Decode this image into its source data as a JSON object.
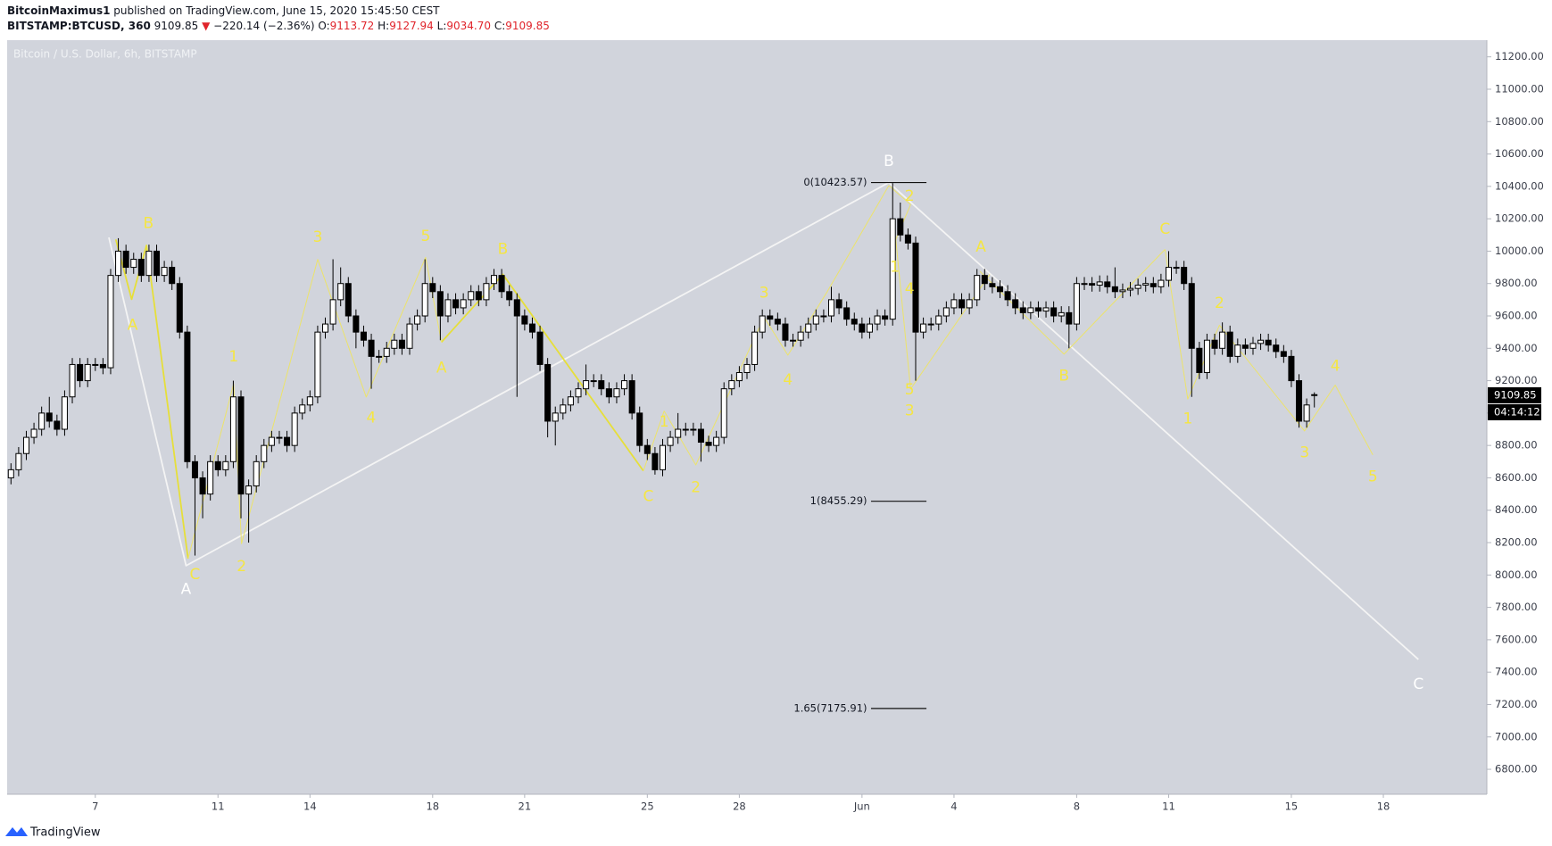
{
  "header": {
    "author": "BitcoinMaximus1",
    "published": "published on TradingView.com, June 15, 2020 15:45:50 CEST",
    "symbol": "BITSTAMP:BTCUSD, 360",
    "last": "9109.85",
    "arrow": "▼",
    "change": "−220.14 (−2.36%)",
    "ohlc": [
      {
        "label": "O:",
        "value": "9113.72"
      },
      {
        "label": "H:",
        "value": "9127.94"
      },
      {
        "label": "L:",
        "value": "9034.70"
      },
      {
        "label": "C:",
        "value": "9109.85"
      }
    ]
  },
  "footer": {
    "brand": "TradingView"
  },
  "chart_data": {
    "type": "candlestick",
    "title": "Bitcoin / U.S. Dollar, 6h, BITSTAMP",
    "up_color": "#ffffff",
    "down_color": "#000000",
    "background": "#d1d4dc",
    "ylim": [
      6646,
      11303
    ],
    "yticks": [
      {
        "value": 6800,
        "label": "6800.00"
      },
      {
        "value": 7000,
        "label": "7000.00"
      },
      {
        "value": 7200,
        "label": "7200.00"
      },
      {
        "value": 7400,
        "label": "7400.00"
      },
      {
        "value": 7600,
        "label": "7600.00"
      },
      {
        "value": 7800,
        "label": "7800.00"
      },
      {
        "value": 8000,
        "label": "8000.00"
      },
      {
        "value": 8200,
        "label": "8200.00"
      },
      {
        "value": 8400,
        "label": "8400.00"
      },
      {
        "value": 8600,
        "label": "8600.00"
      },
      {
        "value": 8800,
        "label": "8800.00"
      },
      {
        "value": 9000,
        "label": "9000.00"
      },
      {
        "value": 9200,
        "label": "9200.00"
      },
      {
        "value": 9400,
        "label": "9400.00"
      },
      {
        "value": 9600,
        "label": "9600.00"
      },
      {
        "value": 9800,
        "label": "9800.00"
      },
      {
        "value": 10000,
        "label": "10000.00"
      },
      {
        "value": 10200,
        "label": "10200.00"
      },
      {
        "value": 10400,
        "label": "10400.00"
      },
      {
        "value": 10600,
        "label": "10600.00"
      },
      {
        "value": 10800,
        "label": "10800.00"
      },
      {
        "value": 11000,
        "label": "11000.00"
      },
      {
        "value": 11200,
        "label": "11200.00"
      }
    ],
    "categories": [
      null,
      null,
      null,
      null,
      null,
      null,
      null,
      null,
      null,
      null,
      null,
      "7",
      null,
      null,
      null,
      null,
      null,
      null,
      null,
      null,
      null,
      null,
      null,
      null,
      null,
      null,
      null,
      "11",
      null,
      null,
      null,
      null,
      null,
      null,
      null,
      null,
      null,
      null,
      null,
      "14",
      null,
      null,
      null,
      null,
      null,
      null,
      null,
      null,
      null,
      null,
      null,
      null,
      null,
      null,
      null,
      "18",
      null,
      null,
      null,
      null,
      null,
      null,
      null,
      null,
      null,
      null,
      null,
      "21",
      null,
      null,
      null,
      null,
      null,
      null,
      null,
      null,
      null,
      null,
      null,
      null,
      null,
      null,
      null,
      "25",
      null,
      null,
      null,
      null,
      null,
      null,
      null,
      null,
      null,
      null,
      null,
      "28",
      null,
      null,
      null,
      null,
      null,
      null,
      null,
      null,
      null,
      null,
      null,
      null,
      null,
      null,
      null,
      "Jun",
      null,
      null,
      null,
      null,
      null,
      null,
      null,
      null,
      null,
      null,
      null,
      "4",
      null,
      null,
      null,
      null,
      null,
      null,
      null,
      null,
      null,
      null,
      null,
      null,
      null,
      null,
      null,
      "8",
      null,
      null,
      null,
      null,
      null,
      null,
      null,
      null,
      null,
      null,
      null,
      "11",
      null,
      null,
      null,
      null,
      null,
      null,
      null,
      null,
      null,
      null,
      null,
      null,
      null,
      null,
      null,
      "15",
      null,
      null,
      null,
      null,
      null,
      null,
      null,
      null,
      null,
      null,
      null,
      "18",
      null,
      null,
      null,
      null,
      null,
      null,
      null,
      null,
      null,
      null,
      null,
      null,
      null
    ],
    "open": [
      8600,
      8650,
      8750,
      8850,
      8900,
      9000,
      8950,
      8900,
      9100,
      9300,
      9200,
      9300,
      9300,
      9280,
      9850,
      10000,
      9900,
      9950,
      9850,
      10000,
      9850,
      9900,
      9800,
      9500,
      8700,
      8600,
      8500,
      8700,
      8650,
      8700,
      9100,
      8500,
      8550,
      8700,
      8800,
      8850,
      8850,
      8800,
      9000,
      9050,
      9100,
      9500,
      9550,
      9700,
      9800,
      9600,
      9500,
      9450,
      9350,
      9350,
      9400,
      9450,
      9400,
      9550,
      9600,
      9800,
      9750,
      9600,
      9700,
      9650,
      9700,
      9750,
      9700,
      9800,
      9850,
      9750,
      9700,
      9600,
      9550,
      9500,
      9300,
      8950,
      9000,
      9050,
      9100,
      9150,
      9200,
      9200,
      9150,
      9100,
      9150,
      9200,
      9000,
      8800,
      8750,
      8650,
      8800,
      8850,
      8900,
      8900,
      8900,
      8820,
      8800,
      8850,
      9150,
      9200,
      9250,
      9300,
      9500,
      9600,
      9580,
      9550,
      9450,
      9450,
      9500,
      9550,
      9600,
      9600,
      9700,
      9650,
      9580,
      9550,
      9500,
      9550,
      9600,
      9580,
      10200,
      10100,
      10050,
      9500,
      9550,
      9550,
      9600,
      9650,
      9700,
      9650,
      9700,
      9850,
      9800,
      9780,
      9750,
      9700,
      9650,
      9620,
      9650,
      9630,
      9650,
      9600,
      9620,
      9550,
      9800,
      9800,
      9790,
      9810,
      9780,
      9750,
      9760,
      9770,
      9790,
      9800,
      9780,
      9820,
      9900,
      9900,
      9800,
      9400,
      9250,
      9450,
      9400,
      9500,
      9350,
      9420,
      9400,
      9430,
      9450,
      9420,
      9380,
      9350,
      9200,
      8950,
      9113.72,
      null,
      null,
      null,
      null,
      null,
      null,
      null,
      null,
      null,
      null,
      null,
      null,
      null,
      null,
      null,
      null,
      null,
      null,
      null,
      null,
      null,
      null
    ],
    "high": [
      8690,
      8790,
      8890,
      8940,
      9040,
      9100,
      8990,
      9140,
      9340,
      9340,
      9340,
      9340,
      9340,
      9890,
      10080,
      10040,
      9990,
      9990,
      10040,
      10040,
      9940,
      9940,
      9840,
      9540,
      8740,
      8640,
      8740,
      8740,
      8740,
      9200,
      9140,
      8590,
      8740,
      8840,
      8890,
      8890,
      8890,
      9040,
      9090,
      9140,
      9540,
      9590,
      9950,
      9900,
      9840,
      9640,
      9540,
      9490,
      9390,
      9440,
      9490,
      9490,
      9590,
      9640,
      9950,
      9840,
      9790,
      9740,
      9740,
      9740,
      9790,
      9790,
      9840,
      9890,
      9890,
      9790,
      9740,
      9640,
      9590,
      9540,
      9340,
      9040,
      9090,
      9140,
      9190,
      9300,
      9240,
      9240,
      9190,
      9190,
      9240,
      9240,
      9040,
      8840,
      8790,
      8840,
      8890,
      9000,
      8940,
      8940,
      8940,
      8860,
      8890,
      9190,
      9240,
      9290,
      9340,
      9540,
      9640,
      9640,
      9620,
      9590,
      9490,
      9540,
      9590,
      9640,
      9640,
      9780,
      9740,
      9690,
      9620,
      9590,
      9590,
      9640,
      9640,
      10420,
      10300,
      10140,
      10090,
      9590,
      9590,
      9640,
      9690,
      9740,
      9740,
      9740,
      9890,
      9890,
      9840,
      9820,
      9790,
      9740,
      9690,
      9690,
      9690,
      9690,
      9690,
      9660,
      9660,
      9840,
      9840,
      9840,
      9850,
      9850,
      9900,
      9800,
      9810,
      9830,
      9840,
      9840,
      9860,
      10000,
      9940,
      9940,
      9840,
      9440,
      9490,
      9490,
      9560,
      9540,
      9460,
      9460,
      9470,
      9490,
      9490,
      9460,
      9420,
      9390,
      9240,
      9090,
      9127.94,
      null,
      null,
      null,
      null,
      null,
      null,
      null,
      null,
      null,
      null,
      null,
      null,
      null,
      null,
      null,
      null,
      null,
      null,
      null,
      null,
      null,
      null
    ],
    "low": [
      8560,
      8610,
      8710,
      8810,
      8860,
      8910,
      8860,
      8860,
      9060,
      9160,
      9160,
      9260,
      9240,
      9240,
      9810,
      9860,
      9860,
      9810,
      9810,
      9810,
      9810,
      9760,
      9460,
      8660,
      8120,
      8350,
      8460,
      8610,
      8610,
      8660,
      8350,
      8200,
      8510,
      8660,
      8760,
      8810,
      8760,
      8760,
      8960,
      9010,
      9060,
      9460,
      9510,
      9660,
      9560,
      9400,
      9410,
      9150,
      9310,
      9310,
      9360,
      9360,
      9360,
      9510,
      9560,
      9710,
      9450,
      9560,
      9610,
      9610,
      9660,
      9660,
      9660,
      9760,
      9710,
      9660,
      9100,
      9510,
      9460,
      9260,
      8850,
      8800,
      8960,
      9010,
      9060,
      9110,
      9160,
      9110,
      9060,
      9060,
      9110,
      8960,
      8760,
      8710,
      8620,
      8610,
      8760,
      8810,
      8860,
      8860,
      8700,
      8760,
      8760,
      8810,
      9110,
      9160,
      9210,
      9260,
      9460,
      9540,
      9510,
      9410,
      9410,
      9410,
      9460,
      9510,
      9560,
      9560,
      9610,
      9540,
      9510,
      9460,
      9460,
      9510,
      9540,
      9540,
      10060,
      10010,
      9200,
      9460,
      9510,
      9510,
      9560,
      9610,
      9610,
      9610,
      9660,
      9760,
      9740,
      9710,
      9660,
      9610,
      9580,
      9580,
      9590,
      9590,
      9560,
      9560,
      9400,
      9510,
      9760,
      9750,
      9750,
      9740,
      9710,
      9710,
      9720,
      9730,
      9750,
      9740,
      9740,
      9780,
      9860,
      9760,
      9100,
      9210,
      9210,
      9360,
      9360,
      9310,
      9310,
      9360,
      9360,
      9390,
      9380,
      9340,
      9310,
      9160,
      8910,
      8910,
      9034.7,
      null,
      null,
      null,
      null,
      null,
      null,
      null,
      null,
      null,
      null,
      null,
      null,
      null,
      null,
      null,
      null,
      null,
      null,
      null,
      null,
      null,
      null
    ],
    "close": [
      8650,
      8750,
      8850,
      8900,
      9000,
      8950,
      8900,
      9100,
      9300,
      9200,
      9300,
      9300,
      9280,
      9850,
      10000,
      9900,
      9950,
      9850,
      10000,
      9850,
      9900,
      9800,
      9500,
      8700,
      8600,
      8500,
      8700,
      8650,
      8700,
      9100,
      8500,
      8550,
      8700,
      8800,
      8850,
      8850,
      8800,
      9000,
      9050,
      9100,
      9500,
      9550,
      9700,
      9800,
      9600,
      9500,
      9450,
      9350,
      9350,
      9400,
      9450,
      9400,
      9550,
      9600,
      9800,
      9750,
      9600,
      9700,
      9650,
      9700,
      9750,
      9700,
      9800,
      9850,
      9750,
      9700,
      9600,
      9550,
      9500,
      9300,
      8950,
      9000,
      9050,
      9100,
      9150,
      9200,
      9200,
      9150,
      9100,
      9150,
      9200,
      9000,
      8800,
      8750,
      8650,
      8800,
      8850,
      8900,
      8900,
      8900,
      8820,
      8800,
      8850,
      9150,
      9200,
      9250,
      9300,
      9500,
      9600,
      9580,
      9550,
      9450,
      9450,
      9500,
      9550,
      9600,
      9600,
      9700,
      9650,
      9580,
      9550,
      9500,
      9550,
      9600,
      9580,
      10200,
      10100,
      10050,
      9500,
      9550,
      9550,
      9600,
      9650,
      9700,
      9650,
      9700,
      9850,
      9800,
      9780,
      9750,
      9700,
      9650,
      9620,
      9650,
      9630,
      9650,
      9600,
      9620,
      9550,
      9800,
      9800,
      9790,
      9810,
      9780,
      9750,
      9760,
      9770,
      9790,
      9800,
      9780,
      9820,
      9900,
      9900,
      9800,
      9400,
      9250,
      9450,
      9400,
      9500,
      9350,
      9420,
      9400,
      9430,
      9450,
      9420,
      9380,
      9350,
      9200,
      8950,
      9050,
      9109.85,
      null,
      null,
      null,
      null,
      null,
      null,
      null,
      null,
      null,
      null,
      null,
      null,
      null,
      null,
      null,
      null,
      null,
      null,
      null,
      null,
      null,
      null
    ],
    "countdown": "04:14:12",
    "fib_levels": [
      {
        "price": 10423.57,
        "label": "0(10423.57)"
      },
      {
        "price": 8455.29,
        "label": "1(8455.29)"
      },
      {
        "price": 7175.91,
        "label": "1.65(7175.91)"
      }
    ],
    "annotations": [
      {
        "text": "B",
        "color": "#f5e642"
      },
      {
        "text": "A",
        "color": "#f5e642"
      },
      {
        "text": "C",
        "color": "#f5e642"
      },
      {
        "text": "1",
        "color": "#f5e642"
      },
      {
        "text": "2",
        "color": "#f5e642"
      },
      {
        "text": "3",
        "color": "#f5e642"
      },
      {
        "text": "4",
        "color": "#f5e642"
      },
      {
        "text": "5",
        "color": "#f5e642"
      },
      {
        "text": "A",
        "color": "#f5e642"
      },
      {
        "text": "B",
        "color": "#f5e642"
      },
      {
        "text": "1",
        "color": "#f5e642"
      },
      {
        "text": "C",
        "color": "#f5e642"
      },
      {
        "text": "2",
        "color": "#f5e642"
      },
      {
        "text": "3",
        "color": "#f5e642"
      },
      {
        "text": "4",
        "color": "#f5e642"
      },
      {
        "text": "2",
        "color": "#f5e642"
      },
      {
        "text": "1",
        "color": "#f5e642"
      },
      {
        "text": "4",
        "color": "#f5e642"
      },
      {
        "text": "5",
        "color": "#f5e642"
      },
      {
        "text": "3",
        "color": "#f5e642"
      },
      {
        "text": "A",
        "color": "#f5e642"
      },
      {
        "text": "B",
        "color": "#f5e642"
      },
      {
        "text": "C",
        "color": "#f5e642"
      },
      {
        "text": "1",
        "color": "#f5e642"
      },
      {
        "text": "2",
        "color": "#f5e642"
      },
      {
        "text": "3",
        "color": "#f5e642"
      },
      {
        "text": "4",
        "color": "#f5e642"
      },
      {
        "text": "5",
        "color": "#f5e642"
      },
      {
        "text": "A",
        "color": "#ffffff"
      },
      {
        "text": "B",
        "color": "#ffffff"
      },
      {
        "text": "C",
        "color": "#ffffff"
      }
    ]
  }
}
